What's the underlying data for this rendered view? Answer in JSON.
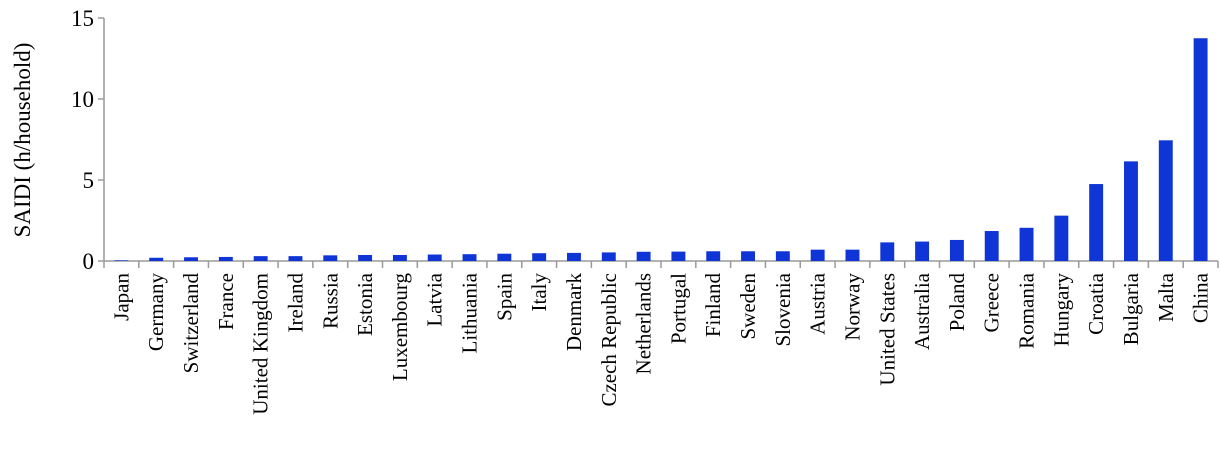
{
  "chart_data": {
    "type": "bar",
    "ylabel": "SAIDI (h/household)",
    "ylim": [
      0,
      15
    ],
    "yticks": [
      0,
      5,
      10,
      15
    ],
    "grid": false,
    "bar_color": "#1035D6",
    "axis_color": "#9A9A9A",
    "categories": [
      "Japan",
      "Germany",
      "Switzerland",
      "France",
      "United Kingdom",
      "Ireland",
      "Russia",
      "Estonia",
      "Luxembourg",
      "Latvia",
      "Lithuania",
      "Spain",
      "Italy",
      "Denmark",
      "Czech Republic",
      "Netherlands",
      "Portugal",
      "Finland",
      "Sweden",
      "Slovenia",
      "Austria",
      "Norway",
      "United States",
      "Australia",
      "Poland",
      "Greece",
      "Romania",
      "Hungary",
      "Croatia",
      "Bulgaria",
      "Malta",
      "China"
    ],
    "values": [
      0.04,
      0.2,
      0.23,
      0.25,
      0.3,
      0.3,
      0.35,
      0.37,
      0.37,
      0.4,
      0.42,
      0.45,
      0.48,
      0.5,
      0.53,
      0.57,
      0.58,
      0.6,
      0.6,
      0.6,
      0.7,
      0.7,
      1.15,
      1.2,
      1.3,
      1.85,
      2.05,
      2.8,
      4.75,
      6.15,
      7.45,
      13.75
    ]
  }
}
